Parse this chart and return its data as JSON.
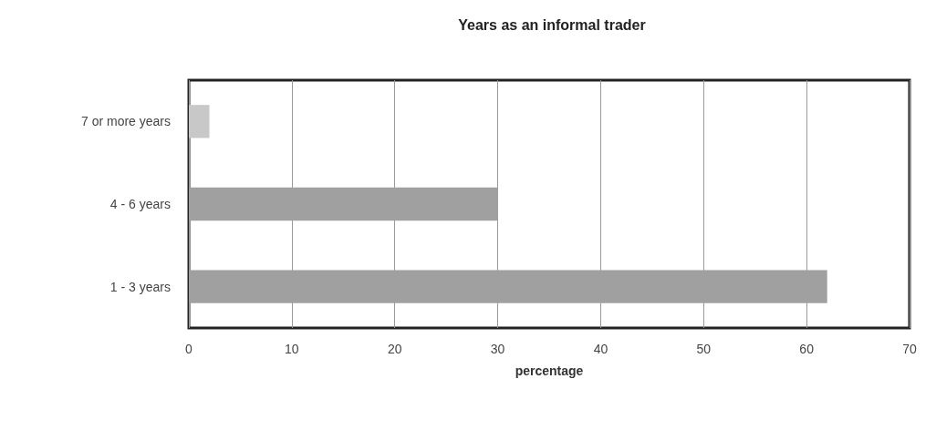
{
  "chart_data": {
    "type": "bar",
    "orientation": "horizontal",
    "title": "Years as an informal trader",
    "xlabel": "percentage",
    "categories": [
      "7 or more years",
      "4 - 6 years",
      "1 - 3 years"
    ],
    "values": [
      2,
      30,
      62
    ],
    "colors": [
      "#c8c8c8",
      "#a0a0a0",
      "#a0a0a0"
    ],
    "xlim": [
      0,
      70
    ],
    "xticks": [
      0,
      10,
      20,
      30,
      40,
      50,
      60,
      70
    ],
    "grid": "x"
  }
}
